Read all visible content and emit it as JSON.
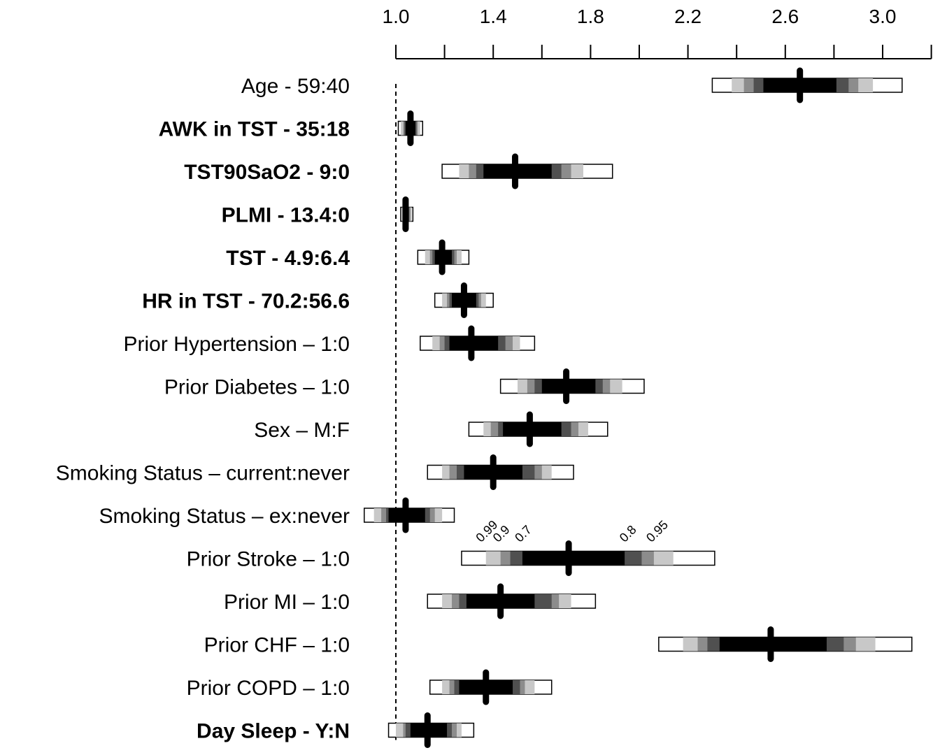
{
  "chart_data": {
    "type": "forest",
    "xlim": [
      1.0,
      3.1
    ],
    "ticks": [
      1.0,
      1.2,
      1.4,
      1.6,
      1.8,
      2.0,
      2.2,
      2.4,
      2.6,
      2.8,
      3.0,
      3.2
    ],
    "tick_labels": [
      {
        "value": 1.0,
        "text": "1.0"
      },
      {
        "value": 1.4,
        "text": "1.4"
      },
      {
        "value": 1.8,
        "text": "1.8"
      },
      {
        "value": 2.2,
        "text": "2.2"
      },
      {
        "value": 2.6,
        "text": "2.6"
      },
      {
        "value": 3.0,
        "text": "3.0"
      }
    ],
    "reference_line": 1.0,
    "shade_colors": [
      "#ffffff",
      "#c8c8c8",
      "#8c8c8c",
      "#505050",
      "#000000"
    ],
    "confidence_level_labels": [
      "0.99",
      "0.9",
      "0.7",
      "0.8",
      "0.95"
    ],
    "rows": [
      {
        "label": "Age - 59:40",
        "bold": false,
        "estimate": 2.66,
        "levels": [
          [
            2.3,
            3.08
          ],
          [
            2.38,
            2.96
          ],
          [
            2.43,
            2.9
          ],
          [
            2.47,
            2.86
          ],
          [
            2.51,
            2.81
          ]
        ]
      },
      {
        "label": "AWK in TST - 35:18",
        "bold": true,
        "estimate": 1.06,
        "levels": [
          [
            1.01,
            1.11
          ],
          [
            1.02,
            1.1
          ],
          [
            1.03,
            1.09
          ],
          [
            1.035,
            1.085
          ],
          [
            1.04,
            1.08
          ]
        ]
      },
      {
        "label": "TST90SaO2 - 9:0",
        "bold": true,
        "estimate": 1.49,
        "levels": [
          [
            1.19,
            1.89
          ],
          [
            1.26,
            1.77
          ],
          [
            1.3,
            1.72
          ],
          [
            1.33,
            1.68
          ],
          [
            1.36,
            1.64
          ]
        ]
      },
      {
        "label": "PLMI - 13.4:0",
        "bold": true,
        "estimate": 1.04,
        "levels": [
          [
            1.02,
            1.07
          ],
          [
            1.025,
            1.065
          ],
          [
            1.03,
            1.06
          ],
          [
            1.032,
            1.055
          ],
          [
            1.035,
            1.05
          ]
        ]
      },
      {
        "label": "TST - 4.9:6.4",
        "bold": true,
        "estimate": 1.19,
        "levels": [
          [
            1.09,
            1.3
          ],
          [
            1.12,
            1.27
          ],
          [
            1.14,
            1.25
          ],
          [
            1.15,
            1.24
          ],
          [
            1.16,
            1.23
          ]
        ]
      },
      {
        "label": "HR in TST - 70.2:56.6",
        "bold": true,
        "estimate": 1.28,
        "levels": [
          [
            1.16,
            1.4
          ],
          [
            1.19,
            1.37
          ],
          [
            1.21,
            1.35
          ],
          [
            1.22,
            1.34
          ],
          [
            1.23,
            1.33
          ]
        ]
      },
      {
        "label": "Prior Hypertension – 1:0",
        "bold": false,
        "estimate": 1.31,
        "levels": [
          [
            1.1,
            1.57
          ],
          [
            1.15,
            1.51
          ],
          [
            1.18,
            1.48
          ],
          [
            1.2,
            1.45
          ],
          [
            1.22,
            1.42
          ]
        ]
      },
      {
        "label": "Prior Diabetes – 1:0",
        "bold": false,
        "estimate": 1.7,
        "levels": [
          [
            1.43,
            2.02
          ],
          [
            1.5,
            1.93
          ],
          [
            1.54,
            1.88
          ],
          [
            1.57,
            1.85
          ],
          [
            1.6,
            1.82
          ]
        ]
      },
      {
        "label": "Sex – M:F",
        "bold": false,
        "estimate": 1.55,
        "levels": [
          [
            1.3,
            1.87
          ],
          [
            1.36,
            1.79
          ],
          [
            1.39,
            1.75
          ],
          [
            1.42,
            1.72
          ],
          [
            1.44,
            1.68
          ]
        ]
      },
      {
        "label": "Smoking Status – current:never",
        "bold": false,
        "estimate": 1.4,
        "levels": [
          [
            1.13,
            1.73
          ],
          [
            1.19,
            1.64
          ],
          [
            1.22,
            1.6
          ],
          [
            1.25,
            1.57
          ],
          [
            1.28,
            1.52
          ]
        ]
      },
      {
        "label": "Smoking Status – ex:never",
        "bold": false,
        "estimate": 1.04,
        "levels": [
          [
            0.87,
            1.24
          ],
          [
            0.91,
            1.19
          ],
          [
            0.94,
            1.16
          ],
          [
            0.96,
            1.14
          ],
          [
            0.97,
            1.12
          ]
        ]
      },
      {
        "label": "Prior Stroke – 1:0",
        "bold": false,
        "estimate": 1.71,
        "levels": [
          [
            1.27,
            2.31
          ],
          [
            1.37,
            2.14
          ],
          [
            1.43,
            2.06
          ],
          [
            1.47,
            2.01
          ],
          [
            1.52,
            1.94
          ]
        ]
      },
      {
        "label": "Prior MI – 1:0",
        "bold": false,
        "estimate": 1.43,
        "levels": [
          [
            1.13,
            1.82
          ],
          [
            1.19,
            1.72
          ],
          [
            1.23,
            1.67
          ],
          [
            1.26,
            1.64
          ],
          [
            1.29,
            1.57
          ]
        ]
      },
      {
        "label": "Prior CHF – 1:0",
        "bold": false,
        "estimate": 2.54,
        "levels": [
          [
            2.08,
            3.12
          ],
          [
            2.18,
            2.97
          ],
          [
            2.24,
            2.89
          ],
          [
            2.28,
            2.84
          ],
          [
            2.33,
            2.77
          ]
        ]
      },
      {
        "label": "Prior COPD – 1:0",
        "bold": false,
        "estimate": 1.37,
        "levels": [
          [
            1.14,
            1.64
          ],
          [
            1.19,
            1.57
          ],
          [
            1.22,
            1.53
          ],
          [
            1.24,
            1.51
          ],
          [
            1.26,
            1.48
          ]
        ]
      },
      {
        "label": "Day Sleep - Y:N",
        "bold": true,
        "estimate": 1.13,
        "levels": [
          [
            0.97,
            1.32
          ],
          [
            1.0,
            1.27
          ],
          [
            1.03,
            1.25
          ],
          [
            1.04,
            1.23
          ],
          [
            1.06,
            1.21
          ]
        ]
      }
    ]
  }
}
